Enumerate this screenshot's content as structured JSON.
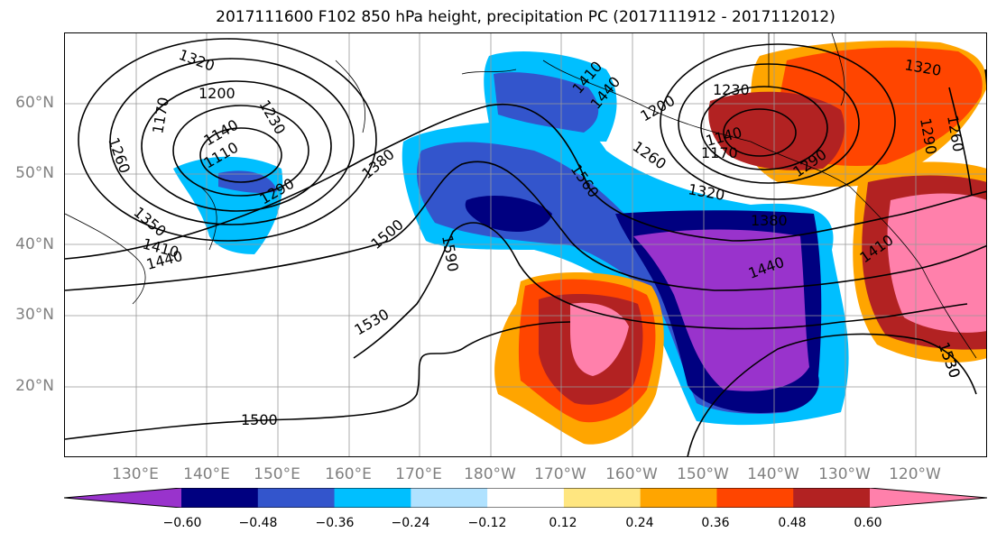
{
  "title": "2017111600 F102 850 hPa height, precipitation PC (2017111912 - 2017112012)",
  "lat_labels": [
    "60°N",
    "50°N",
    "40°N",
    "30°N",
    "20°N"
  ],
  "lon_labels": [
    "130°E",
    "140°E",
    "150°E",
    "160°E",
    "170°E",
    "180°W",
    "170°W",
    "160°W",
    "150°W",
    "140°W",
    "130°W",
    "120°W"
  ],
  "colorbar": {
    "ticks": [
      "−0.60",
      "−0.48",
      "−0.36",
      "−0.24",
      "−0.12",
      "0.12",
      "0.24",
      "0.36",
      "0.48",
      "0.60"
    ],
    "colors": [
      "#9933cc",
      "#000080",
      "#3355cc",
      "#00bfff",
      "#b0e2ff",
      "#ffffff",
      "#ffe680",
      "#ffa500",
      "#ff4500",
      "#b22222",
      "#ff80ab"
    ]
  },
  "contour_labels": [
    "1320",
    "1200",
    "1230",
    "1170",
    "1260",
    "1140",
    "1110",
    "1290",
    "1350",
    "1410",
    "1440",
    "1380",
    "1500",
    "1590",
    "1560",
    "1530",
    "1500",
    "1530"
  ],
  "contour_labels_east": [
    "1230",
    "1200",
    "1140",
    "1170",
    "1260",
    "1290",
    "1320",
    "1380",
    "1440",
    "1410",
    "1530",
    "1260",
    "1290",
    "1320",
    "1410",
    "1440"
  ]
}
